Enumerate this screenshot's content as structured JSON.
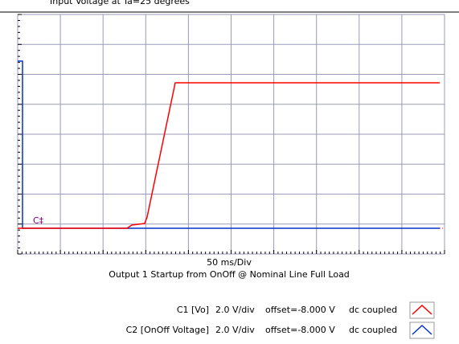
{
  "header": {
    "title": "Input Voltage at Ta=25 degrees"
  },
  "plot": {
    "channel_marker": "C‡",
    "timebase": "50 ms/Div",
    "caption": "Output 1 Startup from OnOff @ Nominal Line Full Load"
  },
  "legend": [
    {
      "channel": "C1 [Vo]",
      "scale": "2.0 V/div",
      "offset": "offset=-8.000 V",
      "coupling": "dc coupled",
      "color": "#ff0000"
    },
    {
      "channel": "C2 [OnOff Voltage]",
      "scale": "2.0 V/div",
      "offset": "offset=-8.000 V",
      "coupling": "dc coupled",
      "color": "#0033cc"
    }
  ]
}
